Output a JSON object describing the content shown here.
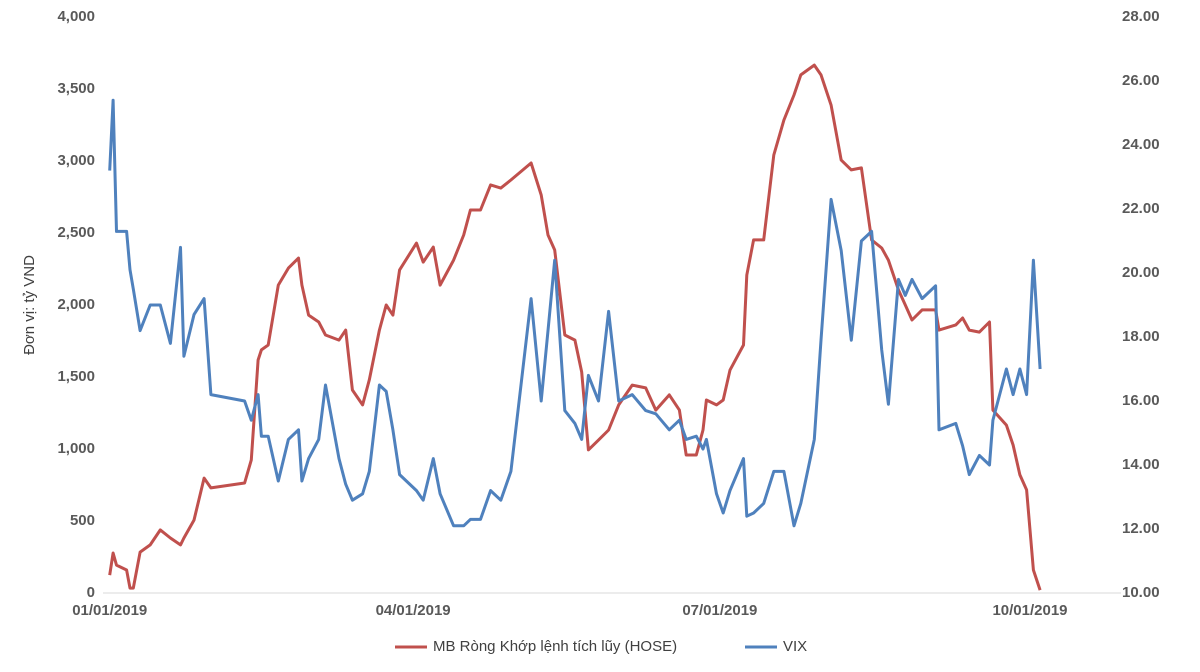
{
  "chart_data": {
    "type": "line",
    "y_label": "Đơn vị: tỷ VND",
    "x": [
      "2019-01-01",
      "2019-01-02",
      "2019-01-03",
      "2019-01-06",
      "2019-01-07",
      "2019-01-08",
      "2019-01-10",
      "2019-01-13",
      "2019-01-16",
      "2019-01-19",
      "2019-01-22",
      "2019-01-23",
      "2019-01-26",
      "2019-01-29",
      "2019-01-31",
      "2019-02-10",
      "2019-02-12",
      "2019-02-14",
      "2019-02-15",
      "2019-02-17",
      "2019-02-20",
      "2019-02-23",
      "2019-02-26",
      "2019-02-27",
      "2019-03-01",
      "2019-03-04",
      "2019-03-06",
      "2019-03-10",
      "2019-03-12",
      "2019-03-14",
      "2019-03-17",
      "2019-03-19",
      "2019-03-22",
      "2019-03-24",
      "2019-03-26",
      "2019-03-28",
      "2019-04-02",
      "2019-04-04",
      "2019-04-07",
      "2019-04-09",
      "2019-04-13",
      "2019-04-16",
      "2019-04-18",
      "2019-04-21",
      "2019-04-24",
      "2019-04-27",
      "2019-04-30",
      "2019-05-06",
      "2019-05-09",
      "2019-05-11",
      "2019-05-13",
      "2019-05-16",
      "2019-05-19",
      "2019-05-21",
      "2019-05-23",
      "2019-05-26",
      "2019-05-29",
      "2019-06-01",
      "2019-06-05",
      "2019-06-09",
      "2019-06-12",
      "2019-06-16",
      "2019-06-19",
      "2019-06-21",
      "2019-06-24",
      "2019-06-26",
      "2019-06-27",
      "2019-06-30",
      "2019-07-02",
      "2019-07-04",
      "2019-07-08",
      "2019-07-09",
      "2019-07-11",
      "2019-07-14",
      "2019-07-17",
      "2019-07-20",
      "2019-07-23",
      "2019-07-25",
      "2019-07-29",
      "2019-07-31",
      "2019-08-03",
      "2019-08-06",
      "2019-08-09",
      "2019-08-12",
      "2019-08-15",
      "2019-08-18",
      "2019-08-20",
      "2019-08-23",
      "2019-08-25",
      "2019-08-27",
      "2019-08-30",
      "2019-09-03",
      "2019-09-04",
      "2019-09-09",
      "2019-09-11",
      "2019-09-13",
      "2019-09-16",
      "2019-09-19",
      "2019-09-20",
      "2019-09-24",
      "2019-09-26",
      "2019-09-28",
      "2019-09-30",
      "2019-10-02",
      "2019-10-04"
    ],
    "series": [
      {
        "name": "MB Ròng Khớp lệnh tích lũy (HOSE)",
        "color": "#c0504d",
        "axis": "y",
        "values": [
          124,
          278,
          194,
          160,
          34,
          34,
          284,
          334,
          438,
          382,
          334,
          382,
          506,
          798,
          730,
          764,
          924,
          1618,
          1688,
          1722,
          2138,
          2256,
          2326,
          2138,
          1930,
          1882,
          1792,
          1756,
          1826,
          1410,
          1306,
          1480,
          1826,
          2000,
          1930,
          2244,
          2430,
          2298,
          2402,
          2138,
          2312,
          2486,
          2660,
          2660,
          2834,
          2812,
          2868,
          2986,
          2764,
          2486,
          2382,
          1792,
          1756,
          1534,
          994,
          1062,
          1132,
          1306,
          1444,
          1424,
          1270,
          1376,
          1270,
          958,
          958,
          1132,
          1340,
          1306,
          1340,
          1548,
          1722,
          2208,
          2452,
          2452,
          3042,
          3284,
          3458,
          3598,
          3666,
          3598,
          3388,
          3006,
          2938,
          2952,
          2452,
          2396,
          2312,
          2104,
          2000,
          1896,
          1966,
          1966,
          1826,
          1862,
          1910,
          1826,
          1812,
          1882,
          1270,
          1166,
          1028,
          820,
          716,
          160,
          20
        ]
      },
      {
        "name": "VIX",
        "color": "#4f81bd",
        "axis": "y2",
        "values": [
          23.2,
          25.4,
          21.3,
          21.3,
          20.1,
          19.5,
          18.2,
          19.0,
          19.0,
          17.8,
          20.8,
          17.4,
          18.7,
          19.2,
          16.2,
          16.0,
          15.4,
          16.2,
          14.9,
          14.9,
          13.5,
          14.8,
          15.1,
          13.5,
          14.2,
          14.8,
          16.5,
          14.2,
          13.4,
          12.9,
          13.1,
          13.8,
          16.5,
          16.3,
          15.1,
          13.7,
          13.2,
          12.9,
          14.2,
          13.1,
          12.1,
          12.1,
          12.3,
          12.3,
          13.2,
          12.9,
          13.8,
          19.2,
          16.0,
          18.2,
          20.4,
          15.7,
          15.3,
          14.8,
          16.8,
          16.0,
          18.8,
          16.0,
          16.2,
          15.7,
          15.6,
          15.1,
          15.4,
          14.8,
          14.9,
          14.5,
          14.8,
          13.1,
          12.5,
          13.2,
          14.2,
          12.4,
          12.5,
          12.8,
          13.8,
          13.8,
          12.1,
          12.8,
          14.8,
          17.9,
          22.3,
          20.7,
          17.9,
          21.0,
          21.3,
          17.6,
          15.9,
          19.8,
          19.3,
          19.8,
          19.2,
          19.6,
          15.1,
          15.3,
          14.6,
          13.7,
          14.3,
          14.0,
          15.4,
          17.0,
          16.2,
          17.0,
          16.2,
          20.4,
          17.0
        ]
      }
    ],
    "xlim": [
      "2018-12-30",
      "2019-10-28"
    ],
    "xticks": [
      {
        "value": "2019-01-01",
        "label": "01/01/2019"
      },
      {
        "value": "2019-04-01",
        "label": "04/01/2019"
      },
      {
        "value": "2019-07-01",
        "label": "07/01/2019"
      },
      {
        "value": "2019-10-01",
        "label": "10/01/2019"
      }
    ],
    "ylim": [
      0,
      4000
    ],
    "yticks": [
      0,
      500,
      {
        "value": 1000,
        "label": "1,000"
      },
      {
        "value": 1500,
        "label": "1,500"
      },
      {
        "value": 2000,
        "label": "2,000"
      },
      {
        "value": 2500,
        "label": "2,500"
      },
      {
        "value": 3000,
        "label": "3,000"
      },
      {
        "value": 3500,
        "label": "3,500"
      },
      {
        "value": 4000,
        "label": "4,000"
      }
    ],
    "y2lim": [
      10,
      28
    ],
    "y2ticks": [
      {
        "value": 10,
        "label": "10.00"
      },
      {
        "value": 12,
        "label": "12.00"
      },
      {
        "value": 14,
        "label": "14.00"
      },
      {
        "value": 16,
        "label": "16.00"
      },
      {
        "value": 18,
        "label": "18.00"
      },
      {
        "value": 20,
        "label": "20.00"
      },
      {
        "value": 22,
        "label": "22.00"
      },
      {
        "value": 24,
        "label": "24.00"
      },
      {
        "value": 26,
        "label": "26.00"
      },
      {
        "value": 28,
        "label": "28.00"
      }
    ],
    "legend": "bottom"
  }
}
